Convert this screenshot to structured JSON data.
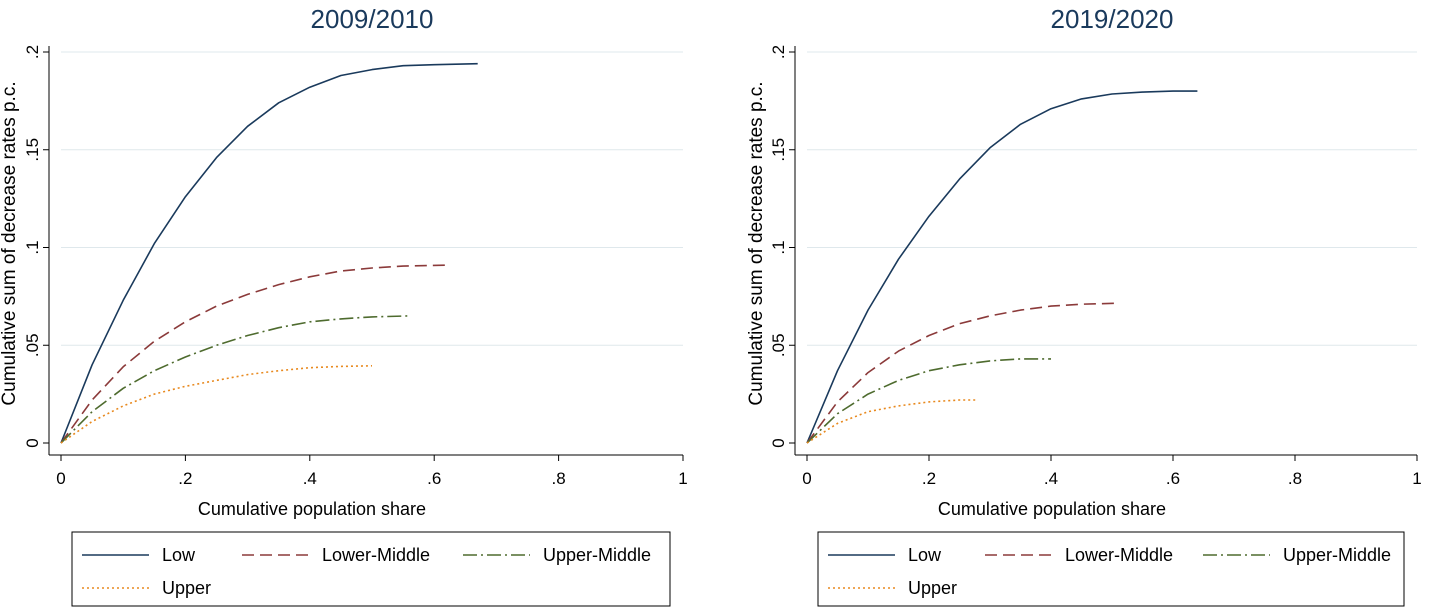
{
  "chart_data": [
    {
      "type": "line",
      "title": "2009/2010",
      "xlabel": "Cumulative population share",
      "ylabel": "Cumulative sum of decrease rates p.c.",
      "xlim": [
        0,
        1
      ],
      "ylim": [
        0,
        0.2
      ],
      "xticks": [
        {
          "v": 0,
          "label": "0"
        },
        {
          "v": 0.2,
          "label": ".2"
        },
        {
          "v": 0.4,
          "label": ".4"
        },
        {
          "v": 0.6,
          "label": ".6"
        },
        {
          "v": 0.8,
          "label": ".8"
        },
        {
          "v": 1,
          "label": "1"
        }
      ],
      "yticks": [
        {
          "v": 0,
          "label": "0"
        },
        {
          "v": 0.05,
          "label": ".05"
        },
        {
          "v": 0.1,
          "label": ".1"
        },
        {
          "v": 0.15,
          "label": ".15"
        },
        {
          "v": 0.2,
          "label": ".2"
        }
      ],
      "grid": true,
      "legend_position": "bottom",
      "series": [
        {
          "name": "Low",
          "color": "#1a3a5c",
          "dash": "solid",
          "x": [
            0,
            0.05,
            0.1,
            0.15,
            0.2,
            0.25,
            0.3,
            0.35,
            0.4,
            0.45,
            0.5,
            0.55,
            0.6,
            0.67
          ],
          "y": [
            0,
            0.04,
            0.073,
            0.102,
            0.126,
            0.146,
            0.162,
            0.174,
            0.182,
            0.188,
            0.191,
            0.193,
            0.1935,
            0.194
          ]
        },
        {
          "name": "Lower-Middle",
          "color": "#8b3a3a",
          "dash": "dash",
          "x": [
            0,
            0.05,
            0.1,
            0.15,
            0.2,
            0.25,
            0.3,
            0.35,
            0.4,
            0.45,
            0.5,
            0.55,
            0.62
          ],
          "y": [
            0,
            0.022,
            0.039,
            0.052,
            0.062,
            0.07,
            0.076,
            0.081,
            0.085,
            0.088,
            0.0895,
            0.0905,
            0.091
          ]
        },
        {
          "name": "Upper-Middle",
          "color": "#4e6b2e",
          "dash": "dashdot",
          "x": [
            0,
            0.05,
            0.1,
            0.15,
            0.2,
            0.25,
            0.3,
            0.35,
            0.4,
            0.45,
            0.5,
            0.56
          ],
          "y": [
            0,
            0.016,
            0.028,
            0.037,
            0.044,
            0.05,
            0.055,
            0.059,
            0.062,
            0.0635,
            0.0645,
            0.065
          ]
        },
        {
          "name": "Upper",
          "color": "#e8891e",
          "dash": "dot",
          "x": [
            0,
            0.05,
            0.1,
            0.15,
            0.2,
            0.25,
            0.3,
            0.35,
            0.4,
            0.45,
            0.5
          ],
          "y": [
            0,
            0.011,
            0.019,
            0.025,
            0.029,
            0.032,
            0.035,
            0.037,
            0.0385,
            0.0392,
            0.0395
          ]
        }
      ]
    },
    {
      "type": "line",
      "title": "2019/2020",
      "xlabel": "Cumulative population share",
      "ylabel": "Cumulative sum of decrease rates p.c.",
      "xlim": [
        0,
        1
      ],
      "ylim": [
        0,
        0.2
      ],
      "xticks": [
        {
          "v": 0,
          "label": "0"
        },
        {
          "v": 0.2,
          "label": ".2"
        },
        {
          "v": 0.4,
          "label": ".4"
        },
        {
          "v": 0.6,
          "label": ".6"
        },
        {
          "v": 0.8,
          "label": ".8"
        },
        {
          "v": 1,
          "label": "1"
        }
      ],
      "yticks": [
        {
          "v": 0,
          "label": "0"
        },
        {
          "v": 0.05,
          "label": ".05"
        },
        {
          "v": 0.1,
          "label": ".1"
        },
        {
          "v": 0.15,
          "label": ".15"
        },
        {
          "v": 0.2,
          "label": ".2"
        }
      ],
      "grid": true,
      "legend_position": "bottom",
      "series": [
        {
          "name": "Low",
          "color": "#1a3a5c",
          "dash": "solid",
          "x": [
            0,
            0.05,
            0.1,
            0.15,
            0.2,
            0.25,
            0.3,
            0.35,
            0.4,
            0.45,
            0.5,
            0.55,
            0.6,
            0.64
          ],
          "y": [
            0,
            0.037,
            0.068,
            0.094,
            0.116,
            0.135,
            0.151,
            0.163,
            0.171,
            0.176,
            0.1785,
            0.1795,
            0.18,
            0.18
          ]
        },
        {
          "name": "Lower-Middle",
          "color": "#8b3a3a",
          "dash": "dash",
          "x": [
            0,
            0.05,
            0.1,
            0.15,
            0.2,
            0.25,
            0.3,
            0.35,
            0.4,
            0.45,
            0.51
          ],
          "y": [
            0,
            0.021,
            0.036,
            0.047,
            0.055,
            0.061,
            0.065,
            0.068,
            0.07,
            0.071,
            0.0715
          ]
        },
        {
          "name": "Upper-Middle",
          "color": "#4e6b2e",
          "dash": "dashdot",
          "x": [
            0,
            0.05,
            0.1,
            0.15,
            0.2,
            0.25,
            0.3,
            0.35,
            0.4
          ],
          "y": [
            0,
            0.015,
            0.025,
            0.032,
            0.037,
            0.04,
            0.042,
            0.043,
            0.043
          ]
        },
        {
          "name": "Upper",
          "color": "#e8891e",
          "dash": "dot",
          "x": [
            0,
            0.05,
            0.1,
            0.15,
            0.2,
            0.25,
            0.28
          ],
          "y": [
            0,
            0.01,
            0.016,
            0.019,
            0.021,
            0.022,
            0.022
          ]
        }
      ]
    }
  ]
}
